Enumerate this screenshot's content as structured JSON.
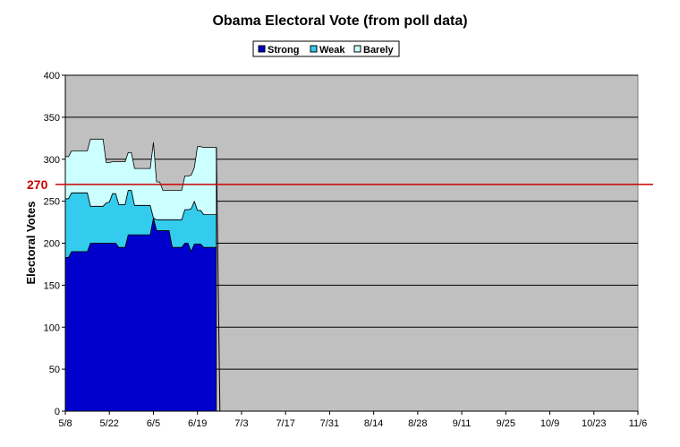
{
  "chart_data": {
    "type": "area",
    "stacked": true,
    "title": "Obama Electoral Vote (from poll data)",
    "xlabel": "",
    "ylabel": "Electoral Votes",
    "ylim": [
      0,
      400
    ],
    "yticks": [
      0,
      50,
      100,
      150,
      200,
      250,
      300,
      350,
      400
    ],
    "xlim": [
      "5/8",
      "11/6"
    ],
    "xticks": [
      "5/8",
      "5/22",
      "6/5",
      "6/19",
      "7/3",
      "7/17",
      "7/31",
      "8/14",
      "8/28",
      "9/11",
      "9/25",
      "10/9",
      "10/23",
      "11/6"
    ],
    "grid": "horizontal",
    "legend": "top-center",
    "reference_line": {
      "value": 270,
      "label": "270",
      "color": "#cc0000"
    },
    "x": [
      "5/8",
      "5/9",
      "5/10",
      "5/11",
      "5/12",
      "5/13",
      "5/14",
      "5/15",
      "5/16",
      "5/17",
      "5/18",
      "5/19",
      "5/20",
      "5/21",
      "5/22",
      "5/23",
      "5/24",
      "5/25",
      "5/26",
      "5/27",
      "5/28",
      "5/29",
      "5/30",
      "5/31",
      "6/1",
      "6/2",
      "6/3",
      "6/4",
      "6/5",
      "6/6",
      "6/7",
      "6/8",
      "6/9",
      "6/10",
      "6/11",
      "6/12",
      "6/13",
      "6/14",
      "6/15",
      "6/16",
      "6/17",
      "6/18",
      "6/19",
      "6/20",
      "6/21",
      "6/22",
      "6/23",
      "6/24",
      "6/25"
    ],
    "series": [
      {
        "name": "Strong",
        "color": "#0000cc",
        "values": [
          183,
          183,
          190,
          190,
          190,
          190,
          190,
          190,
          200,
          200,
          200,
          200,
          200,
          200,
          200,
          200,
          200,
          195,
          195,
          195,
          210,
          210,
          210,
          210,
          210,
          210,
          210,
          210,
          230,
          215,
          215,
          215,
          215,
          215,
          195,
          195,
          195,
          195,
          200,
          200,
          190,
          199,
          199,
          199,
          195,
          195,
          195,
          195,
          195
        ]
      },
      {
        "name": "Weak",
        "color": "#33ccee",
        "values": [
          70,
          70,
          70,
          70,
          70,
          70,
          70,
          70,
          44,
          44,
          44,
          44,
          44,
          48,
          49,
          59,
          59,
          51,
          51,
          51,
          53,
          53,
          35,
          35,
          35,
          35,
          35,
          35,
          0,
          13,
          13,
          13,
          13,
          13,
          33,
          33,
          33,
          33,
          40,
          40,
          51,
          51,
          40,
          40,
          39,
          39,
          39,
          39,
          39
        ]
      },
      {
        "name": "Barely",
        "color": "#ccffff",
        "values": [
          50,
          50,
          50,
          50,
          50,
          50,
          50,
          50,
          80,
          80,
          80,
          80,
          80,
          48,
          47,
          38,
          38,
          51,
          51,
          51,
          45,
          45,
          44,
          44,
          44,
          44,
          44,
          44,
          90,
          45,
          45,
          35,
          35,
          35,
          35,
          35,
          35,
          35,
          40,
          40,
          40,
          40,
          76,
          76,
          80,
          80,
          80,
          80,
          80
        ]
      }
    ]
  }
}
